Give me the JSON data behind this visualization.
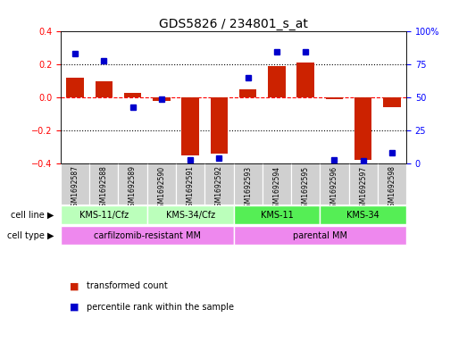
{
  "title": "GDS5826 / 234801_s_at",
  "samples": [
    "GSM1692587",
    "GSM1692588",
    "GSM1692589",
    "GSM1692590",
    "GSM1692591",
    "GSM1692592",
    "GSM1692593",
    "GSM1692594",
    "GSM1692595",
    "GSM1692596",
    "GSM1692597",
    "GSM1692598"
  ],
  "transformed_count": [
    0.12,
    0.1,
    0.03,
    -0.02,
    -0.35,
    -0.34,
    0.05,
    0.19,
    0.21,
    -0.01,
    -0.38,
    -0.06
  ],
  "percentile_rank": [
    83,
    78,
    43,
    49,
    3,
    4,
    65,
    85,
    85,
    3,
    2,
    8
  ],
  "bar_color": "#cc2200",
  "dot_color": "#0000cc",
  "ylim_left": [
    -0.4,
    0.4
  ],
  "ylim_right": [
    0,
    100
  ],
  "yticks_left": [
    -0.4,
    -0.2,
    0.0,
    0.2,
    0.4
  ],
  "yticks_right": [
    0,
    25,
    50,
    75,
    100
  ],
  "ytick_labels_right": [
    "0",
    "25",
    "50",
    "75",
    "100%"
  ],
  "cell_line_groups": [
    {
      "label": "KMS-11/Cfz",
      "start": 0,
      "end": 3,
      "color": "#bbffbb"
    },
    {
      "label": "KMS-34/Cfz",
      "start": 3,
      "end": 6,
      "color": "#bbffbb"
    },
    {
      "label": "KMS-11",
      "start": 6,
      "end": 9,
      "color": "#55ee55"
    },
    {
      "label": "KMS-34",
      "start": 9,
      "end": 12,
      "color": "#55ee55"
    }
  ],
  "cell_type_groups": [
    {
      "label": "carfilzomib-resistant MM",
      "start": 0,
      "end": 6,
      "color": "#ee88ee"
    },
    {
      "label": "parental MM",
      "start": 6,
      "end": 12,
      "color": "#ee88ee"
    }
  ],
  "cell_line_label": "cell line",
  "cell_type_label": "cell type",
  "legend_items": [
    {
      "label": "transformed count",
      "color": "#cc2200"
    },
    {
      "label": "percentile rank within the sample",
      "color": "#0000cc"
    }
  ],
  "sample_box_color": "#d0d0d0",
  "title_fontsize": 10,
  "tick_fontsize": 7,
  "bar_width": 0.6
}
